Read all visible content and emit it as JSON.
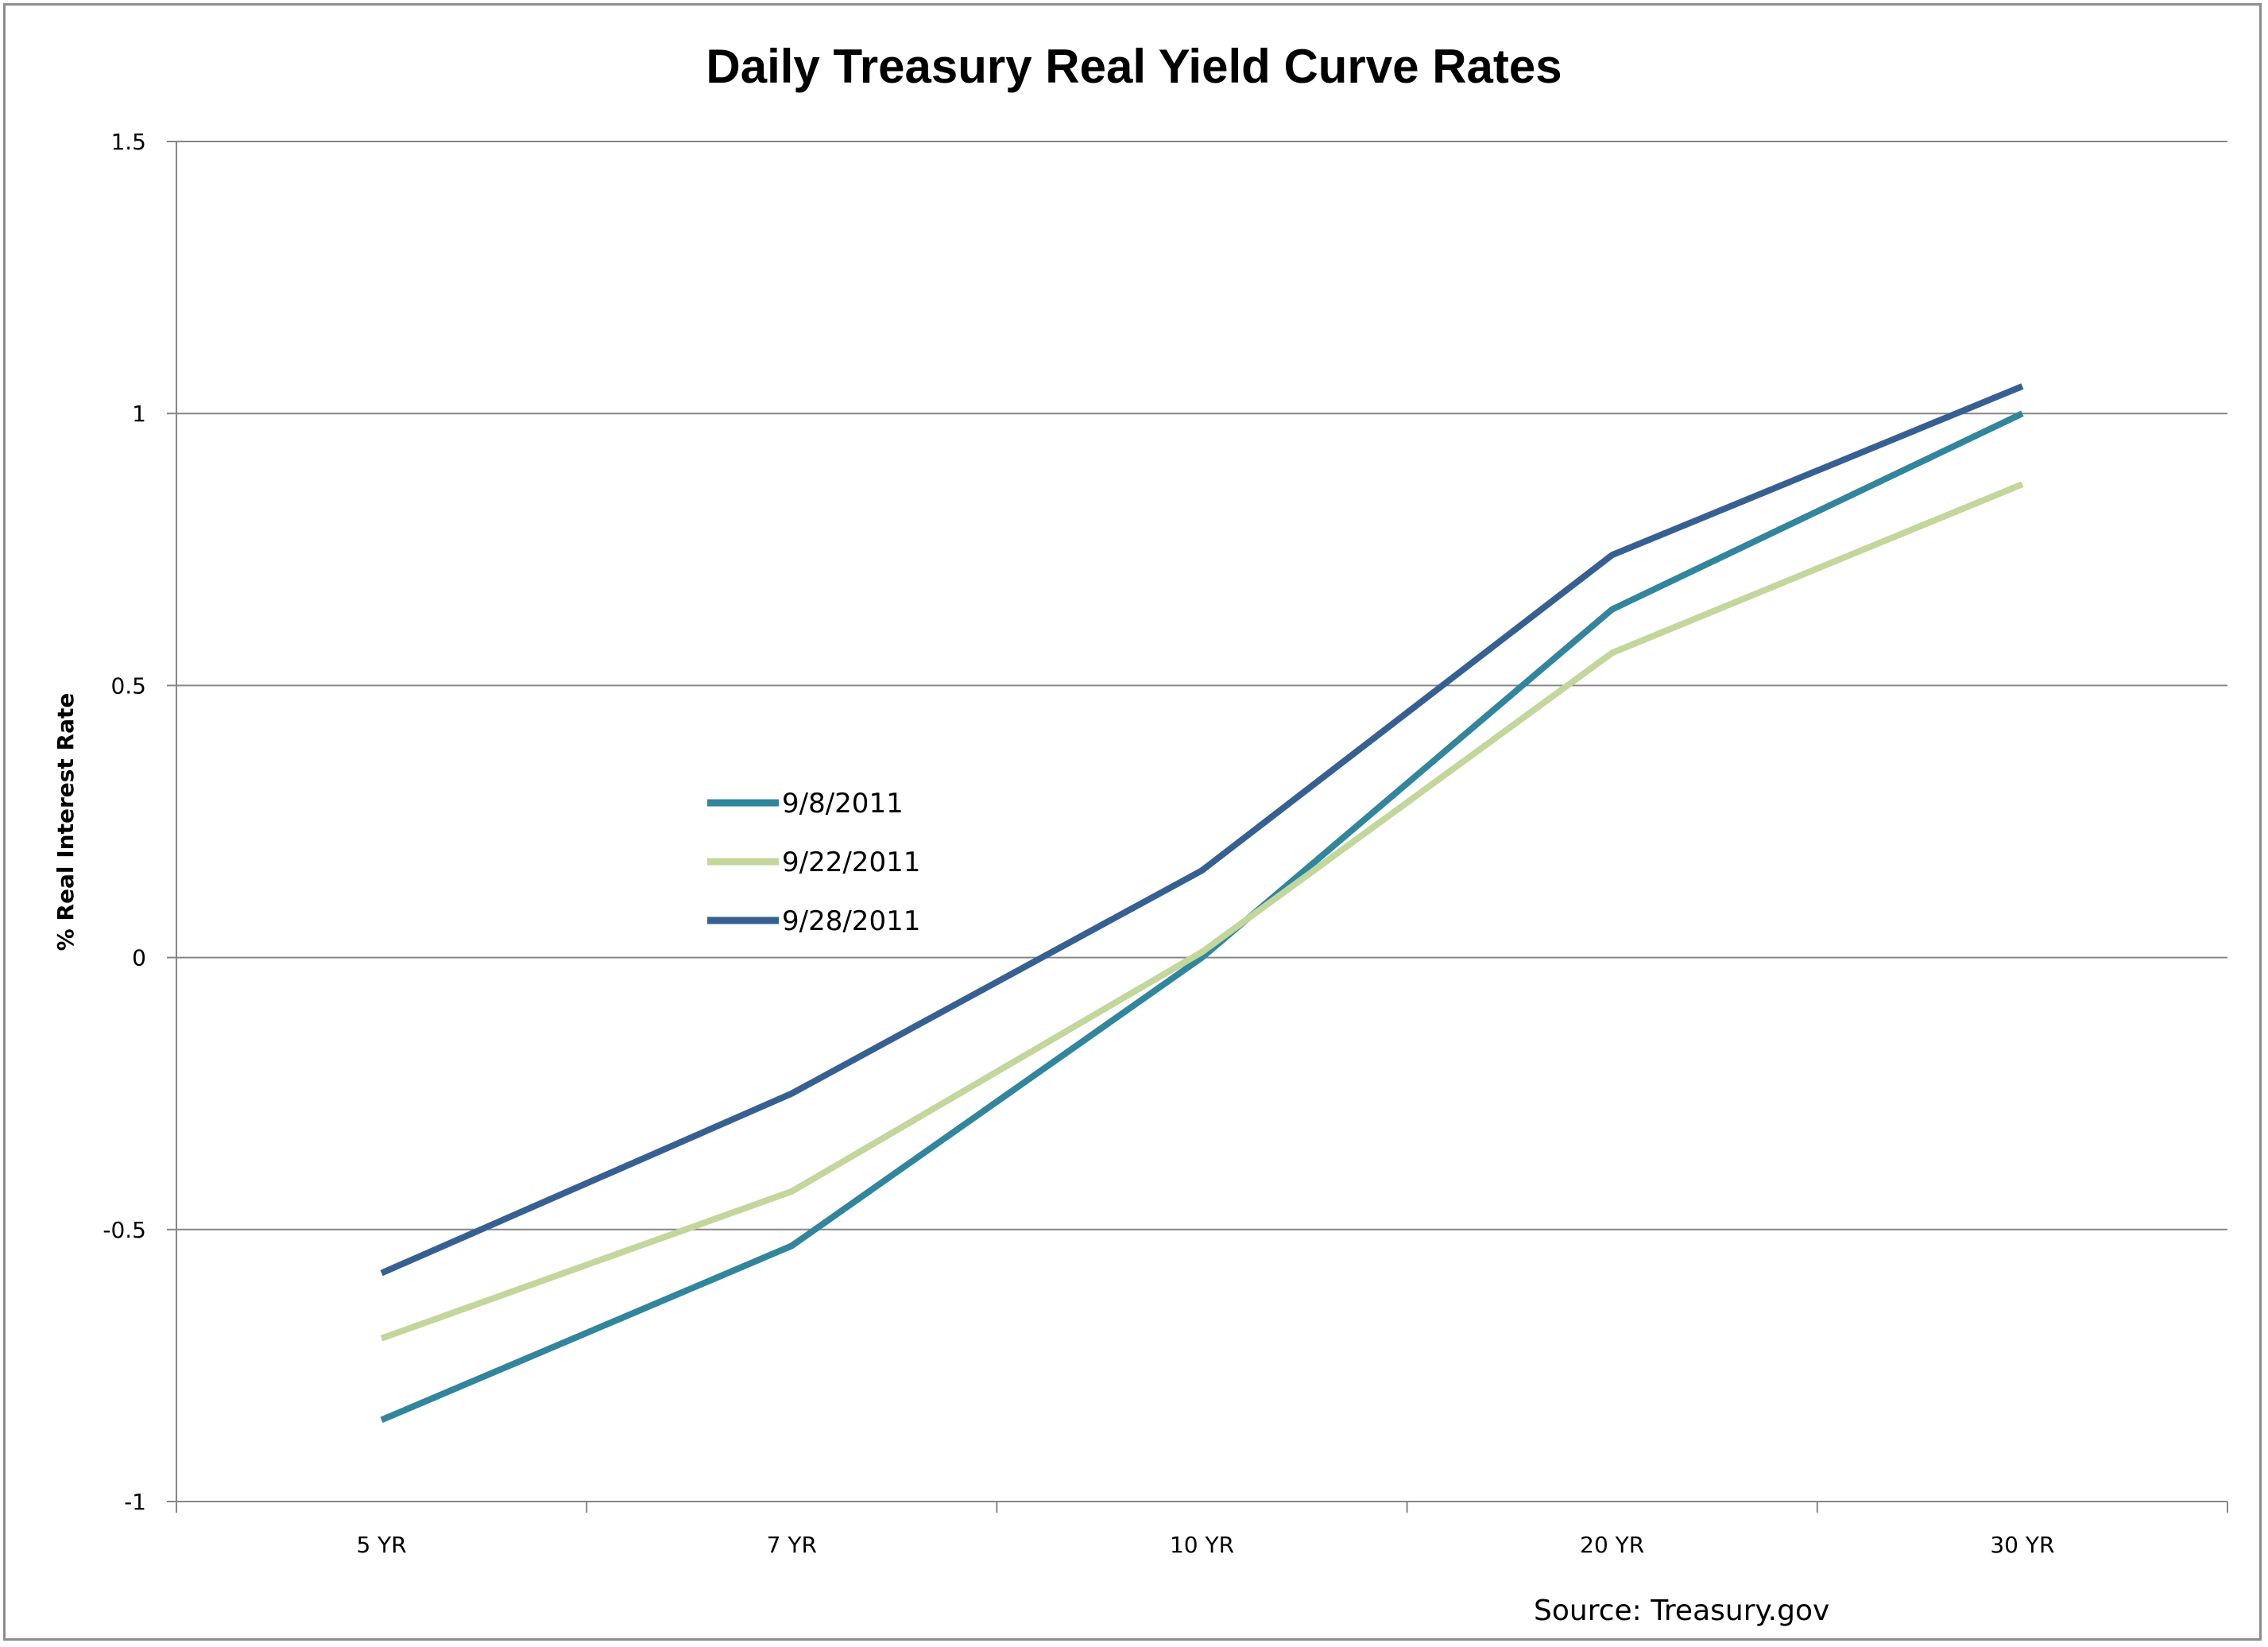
{
  "chart_data": {
    "type": "line",
    "title": "Daily Treasury Real Yield Curve Rates",
    "xlabel": "",
    "ylabel": "% Real Interest Rate",
    "categories": [
      "5 YR",
      "7 YR",
      "10 YR",
      "20 YR",
      "30 YR"
    ],
    "ylim": [
      -1,
      1.5
    ],
    "yticks": [
      -1,
      -0.5,
      0,
      0.5,
      1,
      1.5
    ],
    "ytick_labels": [
      "-1",
      "-0.5",
      "0",
      "0.5",
      "1",
      "1.5"
    ],
    "grid": true,
    "legend_position": "center-left",
    "series": [
      {
        "name": "9/8/2011",
        "color": "#31859C",
        "values": [
          -0.85,
          -0.53,
          0.0,
          0.64,
          1.0
        ]
      },
      {
        "name": "9/22/2011",
        "color": "#C3D69B",
        "values": [
          -0.7,
          -0.43,
          0.01,
          0.56,
          0.87
        ]
      },
      {
        "name": "9/28/2011",
        "color": "#376092",
        "values": [
          -0.58,
          -0.25,
          0.16,
          0.74,
          1.05
        ]
      }
    ],
    "annotation": "Source:  Treasury.gov"
  }
}
